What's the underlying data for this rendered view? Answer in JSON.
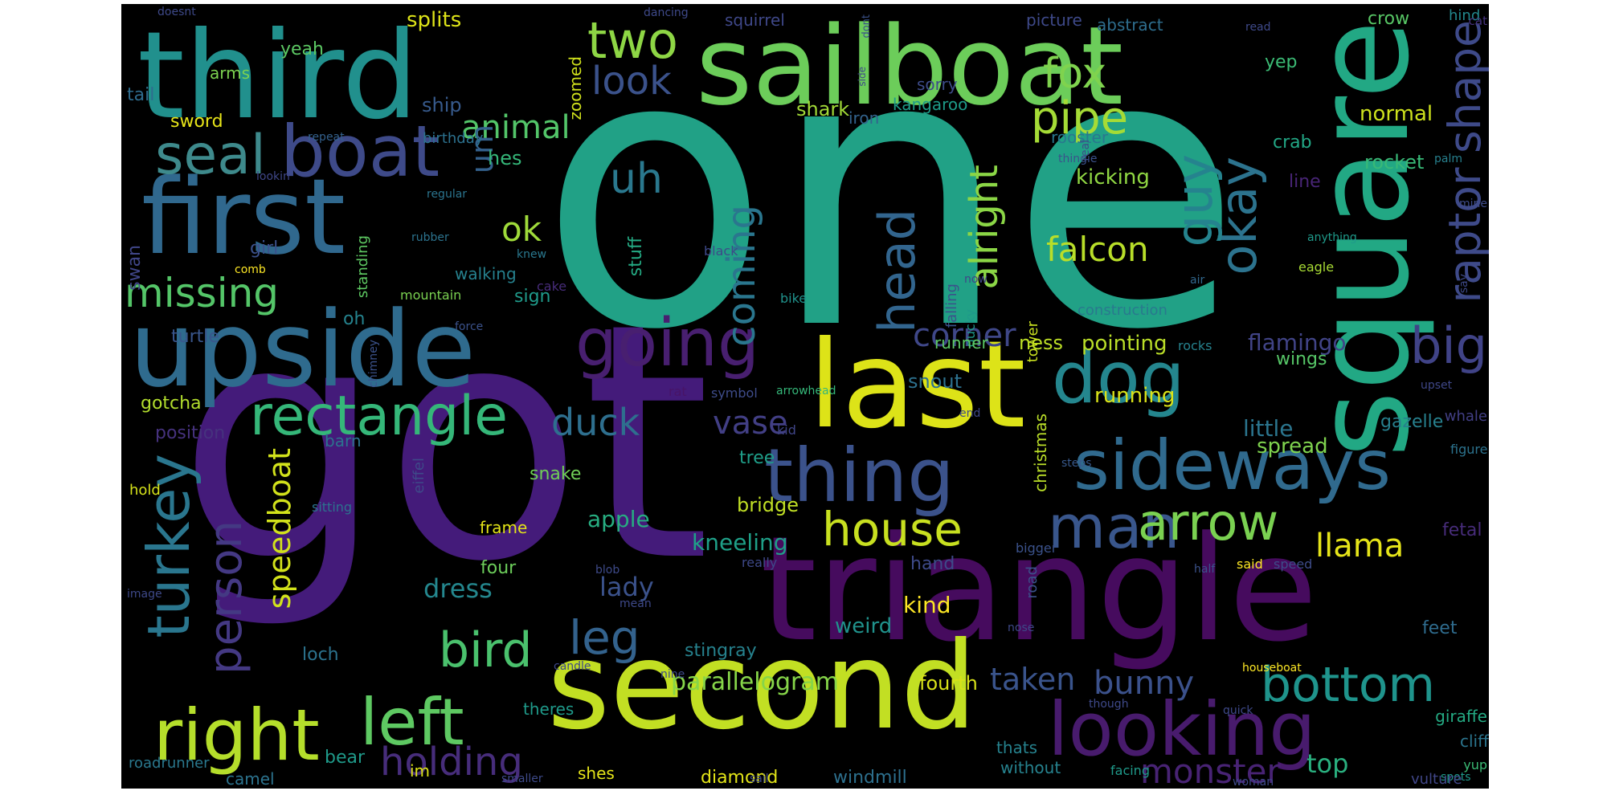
{
  "words": [
    {
      "text": "one",
      "color": "#21a186"
    },
    {
      "text": "got",
      "color": "#441b7a"
    },
    {
      "text": "sailboat",
      "color": "#6ccd5a"
    },
    {
      "text": "third",
      "color": "#21908d"
    },
    {
      "text": "first",
      "color": "#30688e"
    },
    {
      "text": "upside",
      "color": "#2f6b8e"
    },
    {
      "text": "square",
      "color": "#22a884"
    },
    {
      "text": "triangle",
      "color": "#460b5e"
    },
    {
      "text": "second",
      "color": "#c2df23"
    },
    {
      "text": "last",
      "color": "#dde318"
    },
    {
      "text": "boat",
      "color": "#3e4a89"
    },
    {
      "text": "seal",
      "color": "#3e8a8c"
    },
    {
      "text": "two",
      "color": "#8ed645"
    },
    {
      "text": "look",
      "color": "#3b528b"
    },
    {
      "text": "fox",
      "color": "#7fd34e"
    },
    {
      "text": "pipe",
      "color": "#a5db36"
    },
    {
      "text": "raptor shape",
      "color": "#3e4a89"
    },
    {
      "text": "dog",
      "color": "#24868e"
    },
    {
      "text": "okay",
      "color": "#2c738e"
    },
    {
      "text": "guy",
      "color": "#25838e"
    },
    {
      "text": "big",
      "color": "#404387"
    },
    {
      "text": "going",
      "color": "#481f70"
    },
    {
      "text": "rectangle",
      "color": "#35b779"
    },
    {
      "text": "missing",
      "color": "#54c568"
    },
    {
      "text": "animal",
      "color": "#53c569"
    },
    {
      "text": "uh",
      "color": "#2a788e"
    },
    {
      "text": "coming",
      "color": "#2a768e"
    },
    {
      "text": "ok",
      "color": "#9fda3a"
    },
    {
      "text": "um",
      "color": "#34618d"
    },
    {
      "text": "head",
      "color": "#32658e"
    },
    {
      "text": "alright",
      "color": "#8bd646"
    },
    {
      "text": "falcon",
      "color": "#b8de29"
    },
    {
      "text": "corner",
      "color": "#3f4788"
    },
    {
      "text": "thing",
      "color": "#3b528b"
    },
    {
      "text": "sideways",
      "color": "#306a8e"
    },
    {
      "text": "duck",
      "color": "#2e6f8e"
    },
    {
      "text": "vase",
      "color": "#423f85"
    },
    {
      "text": "turkey",
      "color": "#2a768e"
    },
    {
      "text": "person",
      "color": "#443983"
    },
    {
      "text": "speedboat",
      "color": "#d2e21b"
    },
    {
      "text": "house",
      "color": "#c8e020"
    },
    {
      "text": "man",
      "color": "#39568c"
    },
    {
      "text": "arrow",
      "color": "#7ad151"
    },
    {
      "text": "llama",
      "color": "#e5e419"
    },
    {
      "text": "bird",
      "color": "#4ac16d"
    },
    {
      "text": "leg",
      "color": "#33628d"
    },
    {
      "text": "right",
      "color": "#b5de2b"
    },
    {
      "text": "left",
      "color": "#5ec962"
    },
    {
      "text": "looking",
      "color": "#481b6d"
    },
    {
      "text": "bottom",
      "color": "#1f948c"
    },
    {
      "text": "holding",
      "color": "#472d7b"
    },
    {
      "text": "monster",
      "color": "#482374"
    },
    {
      "text": "taken",
      "color": "#3a548c"
    },
    {
      "text": "bunny",
      "color": "#3b518b"
    },
    {
      "text": "top",
      "color": "#2ab07f"
    },
    {
      "text": "parallelogram",
      "color": "#86d549"
    },
    {
      "text": "dress",
      "color": "#24878e"
    },
    {
      "text": "lady",
      "color": "#3b528b"
    },
    {
      "text": "apple",
      "color": "#27ad81"
    },
    {
      "text": "kneeling",
      "color": "#1fa088"
    },
    {
      "text": "bridge",
      "color": "#c0df25"
    },
    {
      "text": "kind",
      "color": "#fde725"
    },
    {
      "text": "weird",
      "color": "#20928c"
    },
    {
      "text": "stingray",
      "color": "#26828e"
    },
    {
      "text": "windmill",
      "color": "#2d708e"
    },
    {
      "text": "diamond",
      "color": "#e2e418"
    },
    {
      "text": "fourth",
      "color": "#d8e219"
    },
    {
      "text": "flamingo",
      "color": "#414487"
    },
    {
      "text": "pointing",
      "color": "#bade28"
    },
    {
      "text": "running",
      "color": "#dae319"
    },
    {
      "text": "ness",
      "color": "#bddf26"
    },
    {
      "text": "little",
      "color": "#2b758e"
    },
    {
      "text": "spread",
      "color": "#7fd34e"
    },
    {
      "text": "gazelle",
      "color": "#27808e"
    },
    {
      "text": "wings",
      "color": "#56c667"
    },
    {
      "text": "normal",
      "color": "#cde11d"
    },
    {
      "text": "rocket",
      "color": "#38b977"
    },
    {
      "text": "crab",
      "color": "#22a785"
    },
    {
      "text": "line",
      "color": "#482576"
    },
    {
      "text": "kicking",
      "color": "#90d743"
    },
    {
      "text": "splits",
      "color": "#dde318"
    },
    {
      "text": "yeah",
      "color": "#5cc863"
    },
    {
      "text": "arms",
      "color": "#7cd250"
    },
    {
      "text": "tail",
      "color": "#2f6c8e"
    },
    {
      "text": "sword",
      "color": "#e7e419"
    },
    {
      "text": "ship",
      "color": "#375a8c"
    },
    {
      "text": "hes",
      "color": "#35b779"
    },
    {
      "text": "zoomed",
      "color": "#d0e11c"
    },
    {
      "text": "shark",
      "color": "#a2da37"
    },
    {
      "text": "squirrel",
      "color": "#3f4889"
    },
    {
      "text": "kangaroo",
      "color": "#1e9c89"
    },
    {
      "text": "sorry",
      "color": "#3e4c8a"
    },
    {
      "text": "iron",
      "color": "#33638d"
    },
    {
      "text": "rooster",
      "color": "#29788e"
    },
    {
      "text": "picture",
      "color": "#3e4989"
    },
    {
      "text": "abstract",
      "color": "#2e6e8e"
    },
    {
      "text": "yep",
      "color": "#3bbb75"
    },
    {
      "text": "crow",
      "color": "#57c665"
    },
    {
      "text": "hind",
      "color": "#23898e"
    },
    {
      "text": "cat",
      "color": "#46337f"
    },
    {
      "text": "swan",
      "color": "#404688"
    },
    {
      "text": "girl",
      "color": "#3b518b"
    },
    {
      "text": "birthday",
      "color": "#2c718e"
    },
    {
      "text": "stuff",
      "color": "#24aa83"
    },
    {
      "text": "falling",
      "color": "#3b528b"
    },
    {
      "text": "ducky",
      "color": "#1f998a"
    },
    {
      "text": "construction",
      "color": "#29798e"
    },
    {
      "text": "snout",
      "color": "#2d718e"
    },
    {
      "text": "runner",
      "color": "#5cc863"
    },
    {
      "text": "tower",
      "color": "#c8e020"
    },
    {
      "text": "oh",
      "color": "#25838e"
    },
    {
      "text": "sign",
      "color": "#1f9a8a"
    },
    {
      "text": "walking",
      "color": "#26818e"
    },
    {
      "text": "turtle",
      "color": "#39568c"
    },
    {
      "text": "standing",
      "color": "#5ec962"
    },
    {
      "text": "gotcha",
      "color": "#b2dd2d"
    },
    {
      "text": "position",
      "color": "#46327e"
    },
    {
      "text": "barn",
      "color": "#2c738e"
    },
    {
      "text": "hold",
      "color": "#d5e21a"
    },
    {
      "text": "eiffel",
      "color": "#3e4a89"
    },
    {
      "text": "sitting",
      "color": "#2c728e"
    },
    {
      "text": "frame",
      "color": "#e3e418"
    },
    {
      "text": "four",
      "color": "#6ccd5a"
    },
    {
      "text": "snake",
      "color": "#70cf57"
    },
    {
      "text": "tree",
      "color": "#1f9e89"
    },
    {
      "text": "christmas",
      "color": "#bade28"
    },
    {
      "text": "kid",
      "color": "#404588"
    },
    {
      "text": "rat",
      "color": "#481467"
    },
    {
      "text": "symbol",
      "color": "#3e4c8a"
    },
    {
      "text": "arrowhead",
      "color": "#35b779"
    },
    {
      "text": "end",
      "color": "#3f4889"
    },
    {
      "text": "steps",
      "color": "#38598c"
    },
    {
      "text": "rocks",
      "color": "#26828e"
    },
    {
      "text": "air",
      "color": "#31688e"
    },
    {
      "text": "eagle",
      "color": "#a8db34"
    },
    {
      "text": "mountain",
      "color": "#7ad151"
    },
    {
      "text": "cake",
      "color": "#472c7a"
    },
    {
      "text": "bike",
      "color": "#20928c"
    },
    {
      "text": "now",
      "color": "#404588"
    },
    {
      "text": "black",
      "color": "#3e4989"
    },
    {
      "text": "knew",
      "color": "#2a788e"
    },
    {
      "text": "rubber",
      "color": "#2c738e"
    },
    {
      "text": "comb",
      "color": "#fde725"
    },
    {
      "text": "chimney",
      "color": "#3b528b"
    },
    {
      "text": "force",
      "color": "#3b528b"
    },
    {
      "text": "anything",
      "color": "#1f9a8a"
    },
    {
      "text": "regular",
      "color": "#2b748e"
    },
    {
      "text": "lookin",
      "color": "#3f4788"
    },
    {
      "text": "repeat",
      "color": "#34618d"
    },
    {
      "text": "thingie",
      "color": "#3b528b"
    },
    {
      "text": "real",
      "color": "#3e4a89"
    },
    {
      "text": "palm",
      "color": "#27808e"
    },
    {
      "text": "mine",
      "color": "#3e4c8a"
    },
    {
      "text": "say",
      "color": "#3e4989"
    },
    {
      "text": "upset",
      "color": "#3f4788"
    },
    {
      "text": "whale",
      "color": "#423f85"
    },
    {
      "text": "figure",
      "color": "#2c738e"
    },
    {
      "text": "fetal",
      "color": "#472c7a"
    },
    {
      "text": "feet",
      "color": "#2f6c8e"
    },
    {
      "text": "giraffe",
      "color": "#24aa83"
    },
    {
      "text": "cliff",
      "color": "#2b758e"
    },
    {
      "text": "yup",
      "color": "#3bbb75"
    },
    {
      "text": "spots",
      "color": "#1f998a"
    },
    {
      "text": "vulture",
      "color": "#404688"
    },
    {
      "text": "woman",
      "color": "#3e4989"
    },
    {
      "text": "quick",
      "color": "#3e4989"
    },
    {
      "text": "houseboat",
      "color": "#fde725"
    },
    {
      "text": "said",
      "color": "#fde725"
    },
    {
      "text": "speed",
      "color": "#3e4c8a"
    },
    {
      "text": "half",
      "color": "#3b528b"
    },
    {
      "text": "thats",
      "color": "#26828e"
    },
    {
      "text": "without",
      "color": "#26828e"
    },
    {
      "text": "facing",
      "color": "#1f9a8a"
    },
    {
      "text": "though",
      "color": "#3e4989"
    },
    {
      "text": "road",
      "color": "#3b528b"
    },
    {
      "text": "nose",
      "color": "#3e4989"
    },
    {
      "text": "bigger",
      "color": "#3b528b"
    },
    {
      "text": "really",
      "color": "#3e4989"
    },
    {
      "text": "hand",
      "color": "#3e4a89"
    },
    {
      "text": "im",
      "color": "#dde318"
    },
    {
      "text": "bear",
      "color": "#1f9a8a"
    },
    {
      "text": "shes",
      "color": "#e5e419"
    },
    {
      "text": "sail",
      "color": "#3e4989"
    },
    {
      "text": "smaller",
      "color": "#3e4a89"
    },
    {
      "text": "camel",
      "color": "#2c738e"
    },
    {
      "text": "roadrunner",
      "color": "#2a788e"
    },
    {
      "text": "theres",
      "color": "#1f9a8a"
    },
    {
      "text": "nine",
      "color": "#3e4a89"
    },
    {
      "text": "candle",
      "color": "#3e4989"
    },
    {
      "text": "mean",
      "color": "#3e4989"
    },
    {
      "text": "blob",
      "color": "#3e4a89"
    },
    {
      "text": "loch",
      "color": "#2c738e"
    },
    {
      "text": "image",
      "color": "#3e4989"
    },
    {
      "text": "doesnt",
      "color": "#3e4989"
    },
    {
      "text": "dancing",
      "color": "#3e4989"
    },
    {
      "text": "dont",
      "color": "#3b528b"
    },
    {
      "text": "side",
      "color": "#3e4989"
    },
    {
      "text": "read",
      "color": "#3e4989"
    }
  ]
}
